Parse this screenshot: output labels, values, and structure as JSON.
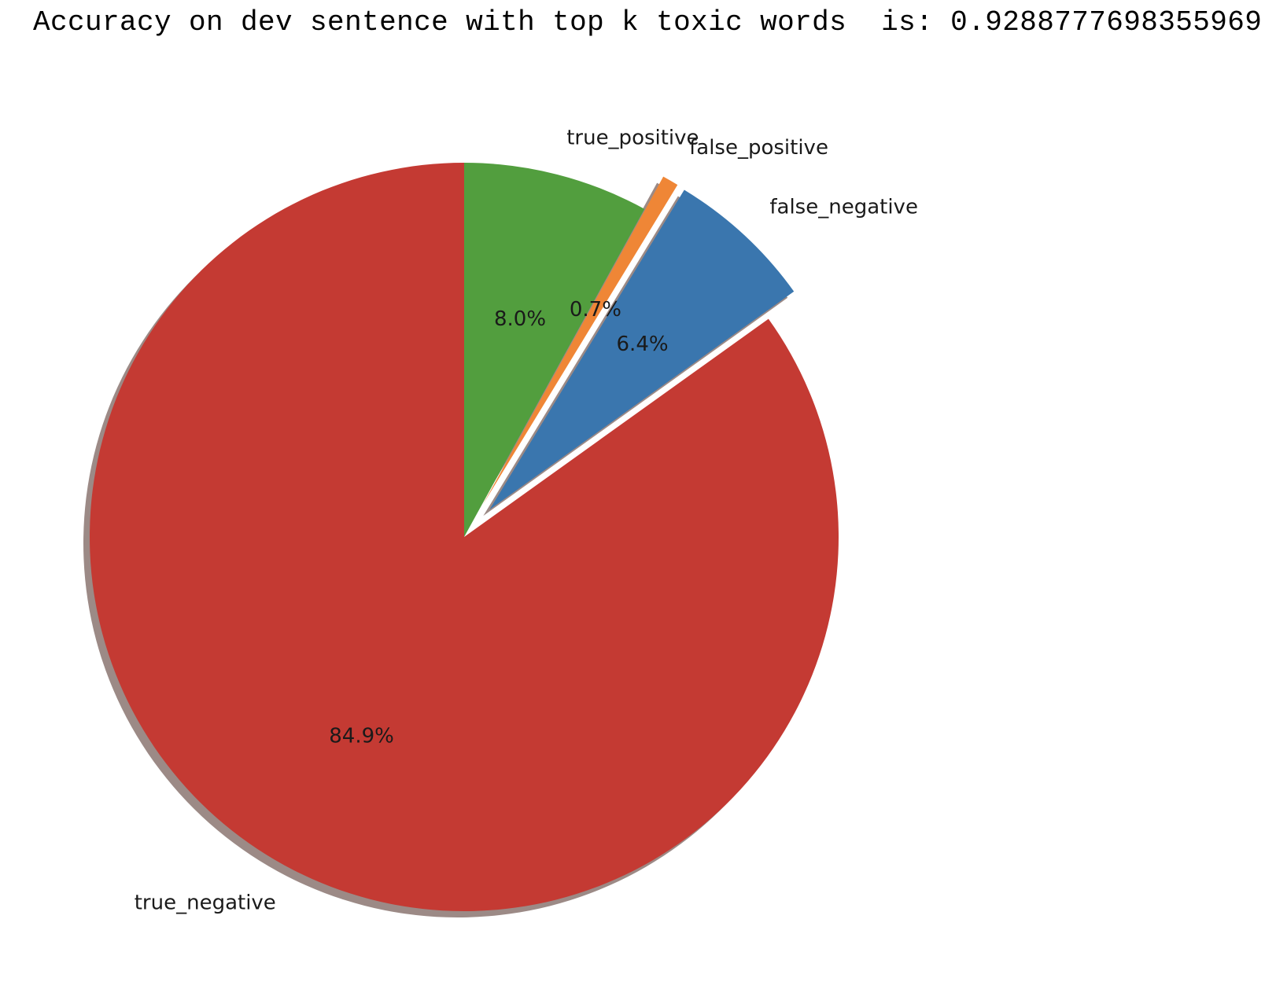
{
  "output_text": "Accuracy on dev sentence with top k toxic words  is: 0.9288777698355969",
  "chart_data": {
    "type": "pie",
    "title": "",
    "shadow": true,
    "start_angle_deg": 90,
    "direction": "counterclockwise",
    "slices": [
      {
        "label": "true_negative",
        "value": 84.9,
        "pct_label": "84.9%",
        "color": "#c43a33",
        "explode": 0
      },
      {
        "label": "false_negative",
        "value": 6.4,
        "pct_label": "6.4%",
        "color": "#3a76ae",
        "explode": 0.1
      },
      {
        "label": "false_positive",
        "value": 0.7,
        "pct_label": "0.7%",
        "color": "#ef8636",
        "explode": 0.1
      },
      {
        "label": "true_positive",
        "value": 8.0,
        "pct_label": "8.0%",
        "color": "#529e3e",
        "explode": 0
      }
    ]
  }
}
